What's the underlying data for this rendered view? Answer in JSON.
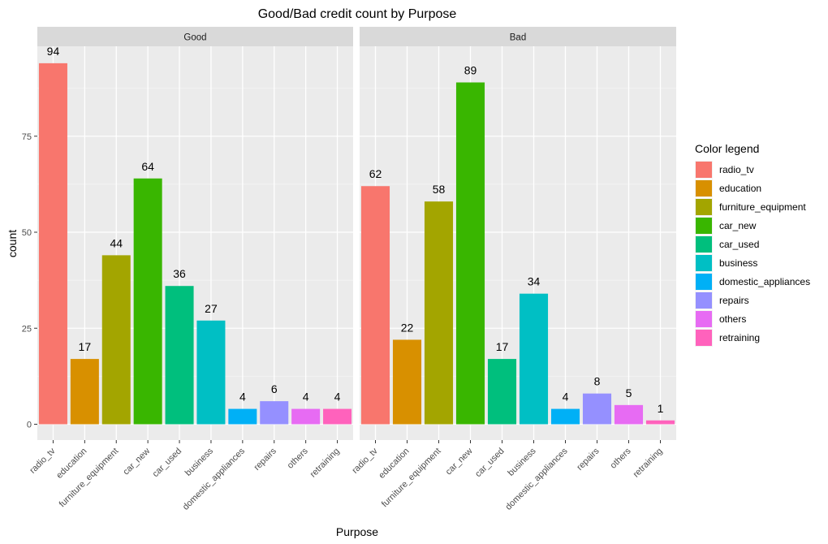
{
  "chart_data": {
    "type": "bar",
    "title": "Good/Bad credit count by Purpose",
    "xlabel": "Purpose",
    "ylabel": "count",
    "ylim": [
      0,
      100
    ],
    "yticks": [
      0,
      25,
      50,
      75
    ],
    "grid": true,
    "legend_position": "right",
    "categories": [
      "radio_tv",
      "education",
      "furniture_equipment",
      "car_new",
      "car_used",
      "business",
      "domestic_appliances",
      "repairs",
      "others",
      "retraining"
    ],
    "colors": [
      "#F8766D",
      "#D89000",
      "#A3A500",
      "#39B600",
      "#00BF7D",
      "#00BFC4",
      "#00B0F6",
      "#9590FF",
      "#E76BF3",
      "#FF62BC"
    ],
    "legend": {
      "title": "Color legend",
      "entries": [
        "radio_tv",
        "education",
        "furniture_equipment",
        "car_new",
        "car_used",
        "business",
        "domestic_appliances",
        "repairs",
        "others",
        "retraining"
      ]
    },
    "panels": [
      {
        "strip": "Good",
        "values": [
          94,
          17,
          44,
          64,
          36,
          27,
          4,
          6,
          4,
          4
        ]
      },
      {
        "strip": "Bad",
        "values": [
          62,
          22,
          58,
          89,
          17,
          34,
          4,
          8,
          5,
          1
        ]
      }
    ]
  }
}
